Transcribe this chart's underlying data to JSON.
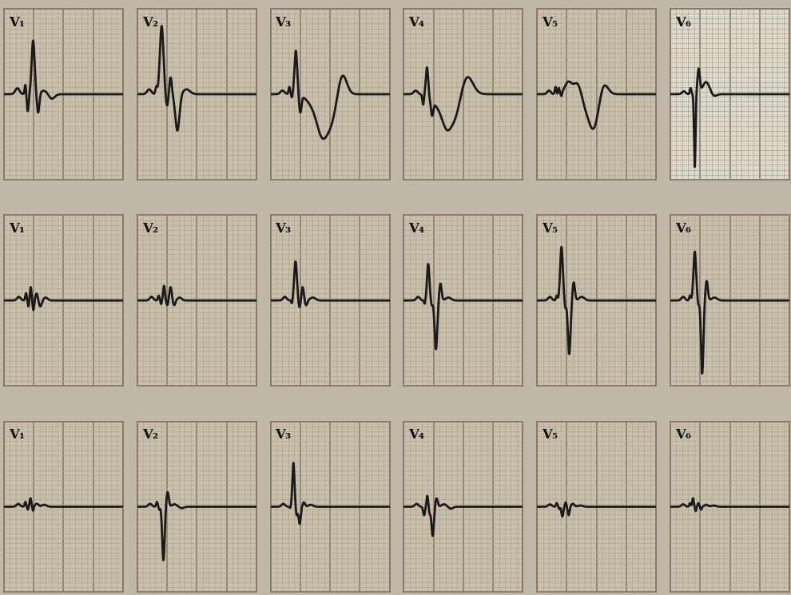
{
  "title": "",
  "rows": 3,
  "cols": 6,
  "labels": [
    "V₁",
    "V₂",
    "V₃",
    "V₄",
    "V₅",
    "V₆"
  ],
  "bg_color_main": "#c8bfac",
  "bg_color_light": "#ddd8cc",
  "grid_minor_color": "#b0a48e",
  "grid_major_color": "#8a7c6a",
  "line_color": "#1a1a1a",
  "line_width": 2.0,
  "fig_bg": "#c0b8a8"
}
